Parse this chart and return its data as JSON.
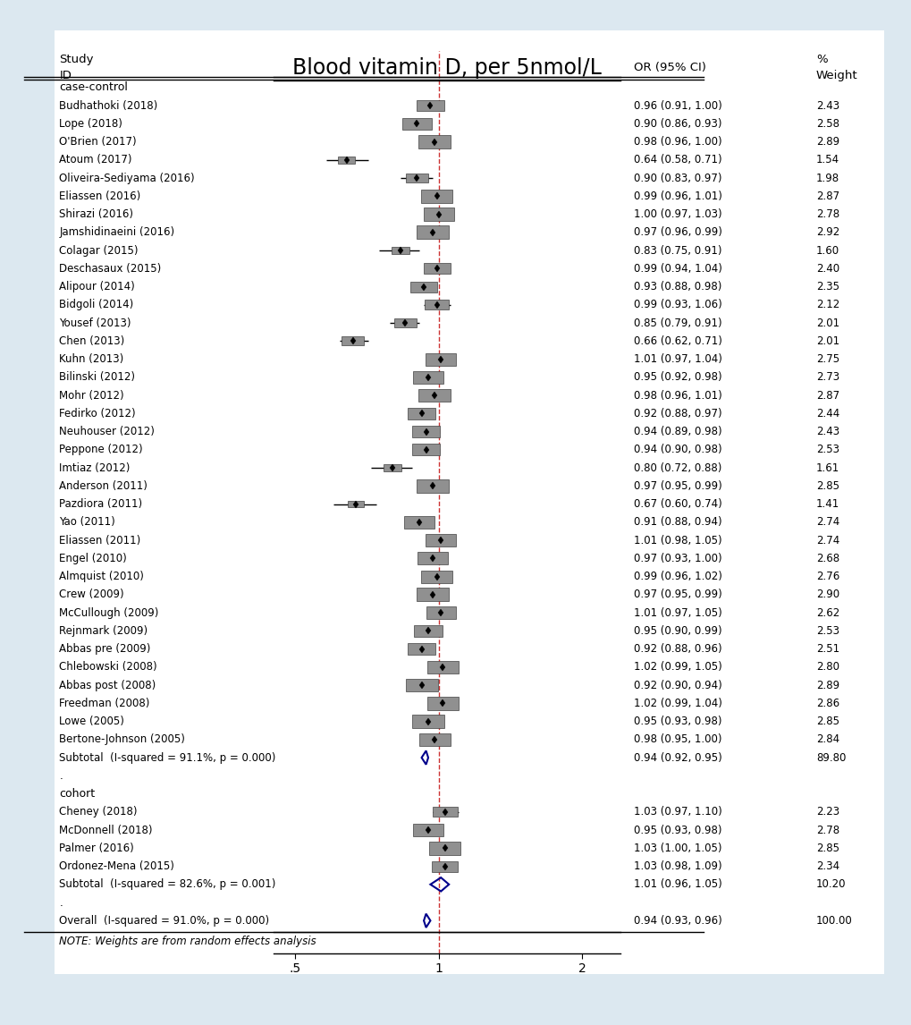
{
  "title": "Blood vitamin D, per 5nmol/L",
  "note": "NOTE: Weights are from random effects analysis",
  "background_color": "#dce8f0",
  "plot_bg_color": "#ffffff",
  "studies": [
    {
      "label": "case-control",
      "or": null,
      "lo": null,
      "hi": null,
      "weight_str": "",
      "or_ci_str": "",
      "type": "header"
    },
    {
      "label": "Budhathoki (2018)",
      "or": 0.96,
      "lo": 0.91,
      "hi": 1.0,
      "weight_str": "2.43",
      "or_ci_str": "0.96 (0.91, 1.00)",
      "type": "study"
    },
    {
      "label": "Lope (2018)",
      "or": 0.9,
      "lo": 0.86,
      "hi": 0.93,
      "weight_str": "2.58",
      "or_ci_str": "0.90 (0.86, 0.93)",
      "type": "study"
    },
    {
      "label": "O'Brien (2017)",
      "or": 0.98,
      "lo": 0.96,
      "hi": 1.0,
      "weight_str": "2.89",
      "or_ci_str": "0.98 (0.96, 1.00)",
      "type": "study"
    },
    {
      "label": "Atoum (2017)",
      "or": 0.64,
      "lo": 0.58,
      "hi": 0.71,
      "weight_str": "1.54",
      "or_ci_str": "0.64 (0.58, 0.71)",
      "type": "study"
    },
    {
      "label": "Oliveira-Sediyama (2016)",
      "or": 0.9,
      "lo": 0.83,
      "hi": 0.97,
      "weight_str": "1.98",
      "or_ci_str": "0.90 (0.83, 0.97)",
      "type": "study"
    },
    {
      "label": "Eliassen (2016)",
      "or": 0.99,
      "lo": 0.96,
      "hi": 1.01,
      "weight_str": "2.87",
      "or_ci_str": "0.99 (0.96, 1.01)",
      "type": "study"
    },
    {
      "label": "Shirazi (2016)",
      "or": 1.0,
      "lo": 0.97,
      "hi": 1.03,
      "weight_str": "2.78",
      "or_ci_str": "1.00 (0.97, 1.03)",
      "type": "study"
    },
    {
      "label": "Jamshidinaeini (2016)",
      "or": 0.97,
      "lo": 0.96,
      "hi": 0.99,
      "weight_str": "2.92",
      "or_ci_str": "0.97 (0.96, 0.99)",
      "type": "study"
    },
    {
      "label": "Colagar (2015)",
      "or": 0.83,
      "lo": 0.75,
      "hi": 0.91,
      "weight_str": "1.60",
      "or_ci_str": "0.83 (0.75, 0.91)",
      "type": "study"
    },
    {
      "label": "Deschasaux (2015)",
      "or": 0.99,
      "lo": 0.94,
      "hi": 1.04,
      "weight_str": "2.40",
      "or_ci_str": "0.99 (0.94, 1.04)",
      "type": "study"
    },
    {
      "label": "Alipour (2014)",
      "or": 0.93,
      "lo": 0.88,
      "hi": 0.98,
      "weight_str": "2.35",
      "or_ci_str": "0.93 (0.88, 0.98)",
      "type": "study"
    },
    {
      "label": "Bidgoli (2014)",
      "or": 0.99,
      "lo": 0.93,
      "hi": 1.06,
      "weight_str": "2.12",
      "or_ci_str": "0.99 (0.93, 1.06)",
      "type": "study"
    },
    {
      "label": "Yousef (2013)",
      "or": 0.85,
      "lo": 0.79,
      "hi": 0.91,
      "weight_str": "2.01",
      "or_ci_str": "0.85 (0.79, 0.91)",
      "type": "study"
    },
    {
      "label": "Chen (2013)",
      "or": 0.66,
      "lo": 0.62,
      "hi": 0.71,
      "weight_str": "2.01",
      "or_ci_str": "0.66 (0.62, 0.71)",
      "type": "study"
    },
    {
      "label": "Kuhn (2013)",
      "or": 1.01,
      "lo": 0.97,
      "hi": 1.04,
      "weight_str": "2.75",
      "or_ci_str": "1.01 (0.97, 1.04)",
      "type": "study"
    },
    {
      "label": "Bilinski (2012)",
      "or": 0.95,
      "lo": 0.92,
      "hi": 0.98,
      "weight_str": "2.73",
      "or_ci_str": "0.95 (0.92, 0.98)",
      "type": "study"
    },
    {
      "label": "Mohr (2012)",
      "or": 0.98,
      "lo": 0.96,
      "hi": 1.01,
      "weight_str": "2.87",
      "or_ci_str": "0.98 (0.96, 1.01)",
      "type": "study"
    },
    {
      "label": "Fedirko (2012)",
      "or": 0.92,
      "lo": 0.88,
      "hi": 0.97,
      "weight_str": "2.44",
      "or_ci_str": "0.92 (0.88, 0.97)",
      "type": "study"
    },
    {
      "label": "Neuhouser (2012)",
      "or": 0.94,
      "lo": 0.89,
      "hi": 0.98,
      "weight_str": "2.43",
      "or_ci_str": "0.94 (0.89, 0.98)",
      "type": "study"
    },
    {
      "label": "Peppone (2012)",
      "or": 0.94,
      "lo": 0.9,
      "hi": 0.98,
      "weight_str": "2.53",
      "or_ci_str": "0.94 (0.90, 0.98)",
      "type": "study"
    },
    {
      "label": "Imtiaz (2012)",
      "or": 0.8,
      "lo": 0.72,
      "hi": 0.88,
      "weight_str": "1.61",
      "or_ci_str": "0.80 (0.72, 0.88)",
      "type": "study"
    },
    {
      "label": "Anderson (2011)",
      "or": 0.97,
      "lo": 0.95,
      "hi": 0.99,
      "weight_str": "2.85",
      "or_ci_str": "0.97 (0.95, 0.99)",
      "type": "study"
    },
    {
      "label": "Pazdiora (2011)",
      "or": 0.67,
      "lo": 0.6,
      "hi": 0.74,
      "weight_str": "1.41",
      "or_ci_str": "0.67 (0.60, 0.74)",
      "type": "study"
    },
    {
      "label": "Yao (2011)",
      "or": 0.91,
      "lo": 0.88,
      "hi": 0.94,
      "weight_str": "2.74",
      "or_ci_str": "0.91 (0.88, 0.94)",
      "type": "study"
    },
    {
      "label": "Eliassen (2011)",
      "or": 1.01,
      "lo": 0.98,
      "hi": 1.05,
      "weight_str": "2.74",
      "or_ci_str": "1.01 (0.98, 1.05)",
      "type": "study"
    },
    {
      "label": "Engel (2010)",
      "or": 0.97,
      "lo": 0.93,
      "hi": 1.0,
      "weight_str": "2.68",
      "or_ci_str": "0.97 (0.93, 1.00)",
      "type": "study"
    },
    {
      "label": "Almquist (2010)",
      "or": 0.99,
      "lo": 0.96,
      "hi": 1.02,
      "weight_str": "2.76",
      "or_ci_str": "0.99 (0.96, 1.02)",
      "type": "study"
    },
    {
      "label": "Crew (2009)",
      "or": 0.97,
      "lo": 0.95,
      "hi": 0.99,
      "weight_str": "2.90",
      "or_ci_str": "0.97 (0.95, 0.99)",
      "type": "study"
    },
    {
      "label": "McCullough (2009)",
      "or": 1.01,
      "lo": 0.97,
      "hi": 1.05,
      "weight_str": "2.62",
      "or_ci_str": "1.01 (0.97, 1.05)",
      "type": "study"
    },
    {
      "label": "Rejnmark (2009)",
      "or": 0.95,
      "lo": 0.9,
      "hi": 0.99,
      "weight_str": "2.53",
      "or_ci_str": "0.95 (0.90, 0.99)",
      "type": "study"
    },
    {
      "label": "Abbas pre (2009)",
      "or": 0.92,
      "lo": 0.88,
      "hi": 0.96,
      "weight_str": "2.51",
      "or_ci_str": "0.92 (0.88, 0.96)",
      "type": "study"
    },
    {
      "label": "Chlebowski (2008)",
      "or": 1.02,
      "lo": 0.99,
      "hi": 1.05,
      "weight_str": "2.80",
      "or_ci_str": "1.02 (0.99, 1.05)",
      "type": "study"
    },
    {
      "label": "Abbas post (2008)",
      "or": 0.92,
      "lo": 0.9,
      "hi": 0.94,
      "weight_str": "2.89",
      "or_ci_str": "0.92 (0.90, 0.94)",
      "type": "study"
    },
    {
      "label": "Freedman (2008)",
      "or": 1.02,
      "lo": 0.99,
      "hi": 1.04,
      "weight_str": "2.86",
      "or_ci_str": "1.02 (0.99, 1.04)",
      "type": "study"
    },
    {
      "label": "Lowe (2005)",
      "or": 0.95,
      "lo": 0.93,
      "hi": 0.98,
      "weight_str": "2.85",
      "or_ci_str": "0.95 (0.93, 0.98)",
      "type": "study"
    },
    {
      "label": "Bertone-Johnson (2005)",
      "or": 0.98,
      "lo": 0.95,
      "hi": 1.0,
      "weight_str": "2.84",
      "or_ci_str": "0.98 (0.95, 1.00)",
      "type": "study"
    },
    {
      "label": "Subtotal  (I-squared = 91.1%, p = 0.000)",
      "or": 0.94,
      "lo": 0.92,
      "hi": 0.95,
      "weight_str": "89.80",
      "or_ci_str": "0.94 (0.92, 0.95)",
      "type": "subtotal"
    },
    {
      "label": ".",
      "or": null,
      "lo": null,
      "hi": null,
      "weight_str": "",
      "or_ci_str": "",
      "type": "spacer"
    },
    {
      "label": "cohort",
      "or": null,
      "lo": null,
      "hi": null,
      "weight_str": "",
      "or_ci_str": "",
      "type": "header"
    },
    {
      "label": "Cheney (2018)",
      "or": 1.03,
      "lo": 0.97,
      "hi": 1.1,
      "weight_str": "2.23",
      "or_ci_str": "1.03 (0.97, 1.10)",
      "type": "study"
    },
    {
      "label": "McDonnell (2018)",
      "or": 0.95,
      "lo": 0.93,
      "hi": 0.98,
      "weight_str": "2.78",
      "or_ci_str": "0.95 (0.93, 0.98)",
      "type": "study"
    },
    {
      "label": "Palmer (2016)",
      "or": 1.03,
      "lo": 1.0,
      "hi": 1.05,
      "weight_str": "2.85",
      "or_ci_str": "1.03 (1.00, 1.05)",
      "type": "study"
    },
    {
      "label": "Ordonez-Mena (2015)",
      "or": 1.03,
      "lo": 0.98,
      "hi": 1.09,
      "weight_str": "2.34",
      "or_ci_str": "1.03 (0.98, 1.09)",
      "type": "study"
    },
    {
      "label": "Subtotal  (I-squared = 82.6%, p = 0.001)",
      "or": 1.01,
      "lo": 0.96,
      "hi": 1.05,
      "weight_str": "10.20",
      "or_ci_str": "1.01 (0.96, 1.05)",
      "type": "subtotal"
    },
    {
      "label": ".",
      "or": null,
      "lo": null,
      "hi": null,
      "weight_str": "",
      "or_ci_str": "",
      "type": "spacer"
    },
    {
      "label": "Overall  (I-squared = 91.0%, p = 0.000)",
      "or": 0.94,
      "lo": 0.93,
      "hi": 0.96,
      "weight_str": "100.00",
      "or_ci_str": "0.94 (0.93, 0.96)",
      "type": "overall"
    }
  ]
}
